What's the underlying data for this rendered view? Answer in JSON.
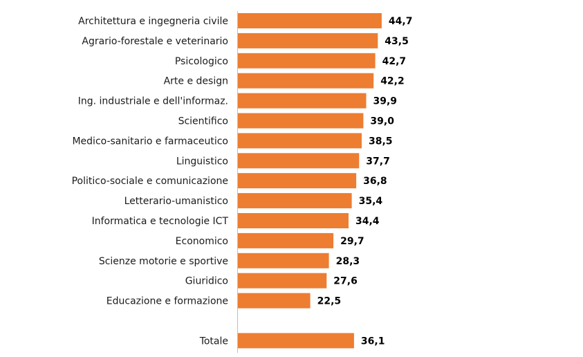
{
  "chart_data": {
    "type": "bar",
    "orientation": "horizontal",
    "categories": [
      "Architettura e ingegneria civile",
      "Agrario-forestale e veterinario",
      "Psicologico",
      "Arte e design",
      "Ing. industriale e dell'informaz.",
      "Scientifico",
      "Medico-sanitario e farmaceutico",
      "Linguistico",
      "Politico-sociale e comunicazione",
      "Letterario-umanistico",
      "Informatica e tecnologie ICT",
      "Economico",
      "Scienze motorie e sportive",
      "Giuridico",
      "Educazione e formazione",
      "Totale"
    ],
    "values": [
      44.7,
      43.5,
      42.7,
      42.2,
      39.9,
      39.0,
      38.5,
      37.7,
      36.8,
      35.4,
      34.4,
      29.7,
      28.3,
      27.6,
      22.5,
      36.1
    ],
    "value_labels": [
      "44,7",
      "43,5",
      "42,7",
      "42,2",
      "39,9",
      "39,0",
      "38,5",
      "37,7",
      "36,8",
      "35,4",
      "34,4",
      "29,7",
      "28,3",
      "27,6",
      "22,5",
      "36,1"
    ],
    "xlim": [
      0,
      50
    ],
    "grid": false,
    "legend": "none",
    "bar_color": "#ED7D31",
    "axis_color": "#BFBFBF"
  }
}
